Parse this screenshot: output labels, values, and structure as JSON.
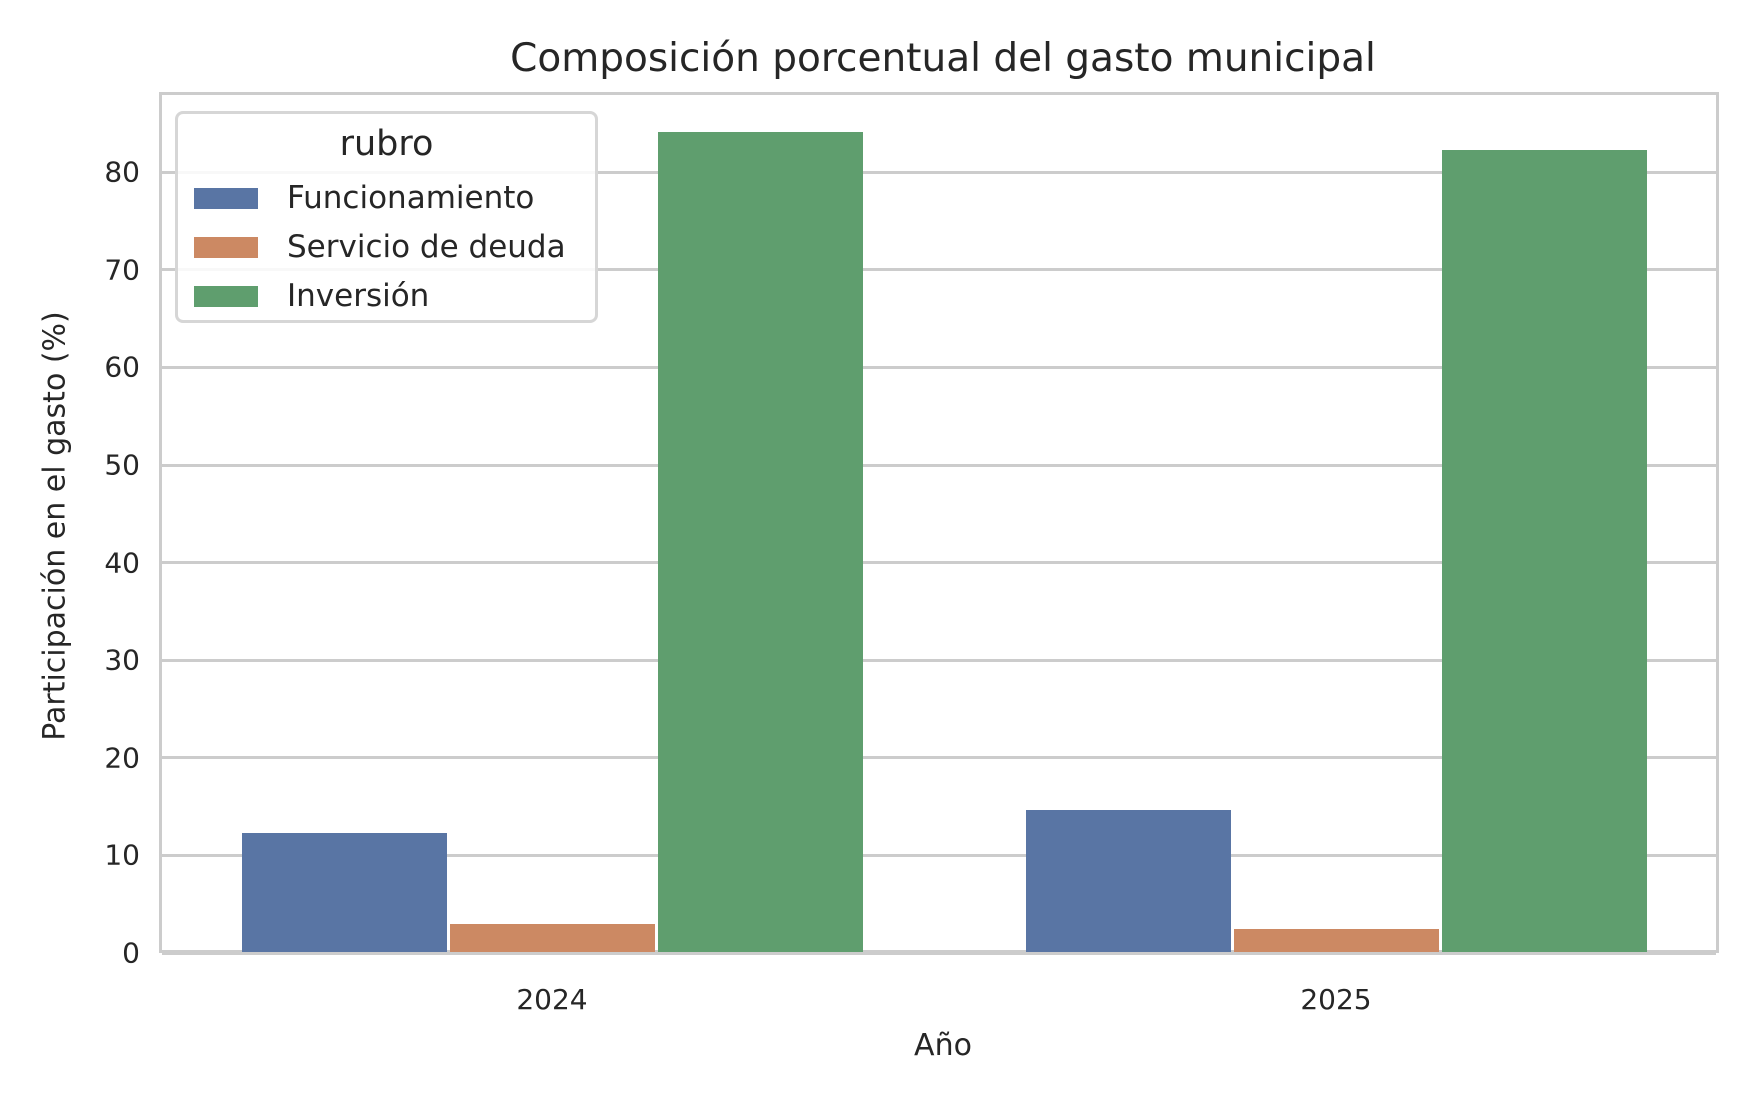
{
  "title": "Composición porcentual del gasto municipal",
  "xlabel": "Año",
  "ylabel": "Participación en el gasto (%)",
  "legend": {
    "title": "rubro",
    "items": [
      {
        "label": "Funcionamiento",
        "color": "#5975a4"
      },
      {
        "label": "Servicio de deuda",
        "color": "#cc8963"
      },
      {
        "label": "Inversión",
        "color": "#5f9e6e"
      }
    ]
  },
  "yticks": [
    "0",
    "10",
    "20",
    "30",
    "40",
    "50",
    "60",
    "70",
    "80"
  ],
  "xticks": [
    "2024",
    "2025"
  ],
  "chart_data": {
    "type": "bar",
    "title": "Composición porcentual del gasto municipal",
    "xlabel": "Año",
    "ylabel": "Participación en el gasto (%)",
    "categories": [
      "2024",
      "2025"
    ],
    "series": [
      {
        "name": "Funcionamiento",
        "values": [
          12.2,
          14.6
        ],
        "color": "#5975a4"
      },
      {
        "name": "Servicio de deuda",
        "values": [
          2.9,
          2.4
        ],
        "color": "#cc8963"
      },
      {
        "name": "Inversión",
        "values": [
          84.0,
          82.2
        ],
        "color": "#5f9e6e"
      }
    ],
    "ylim": [
      0,
      88.2
    ],
    "yticks": [
      0,
      10,
      20,
      30,
      40,
      50,
      60,
      70,
      80
    ],
    "grid": true,
    "legend_position": "upper left",
    "legend_title": "rubro"
  }
}
